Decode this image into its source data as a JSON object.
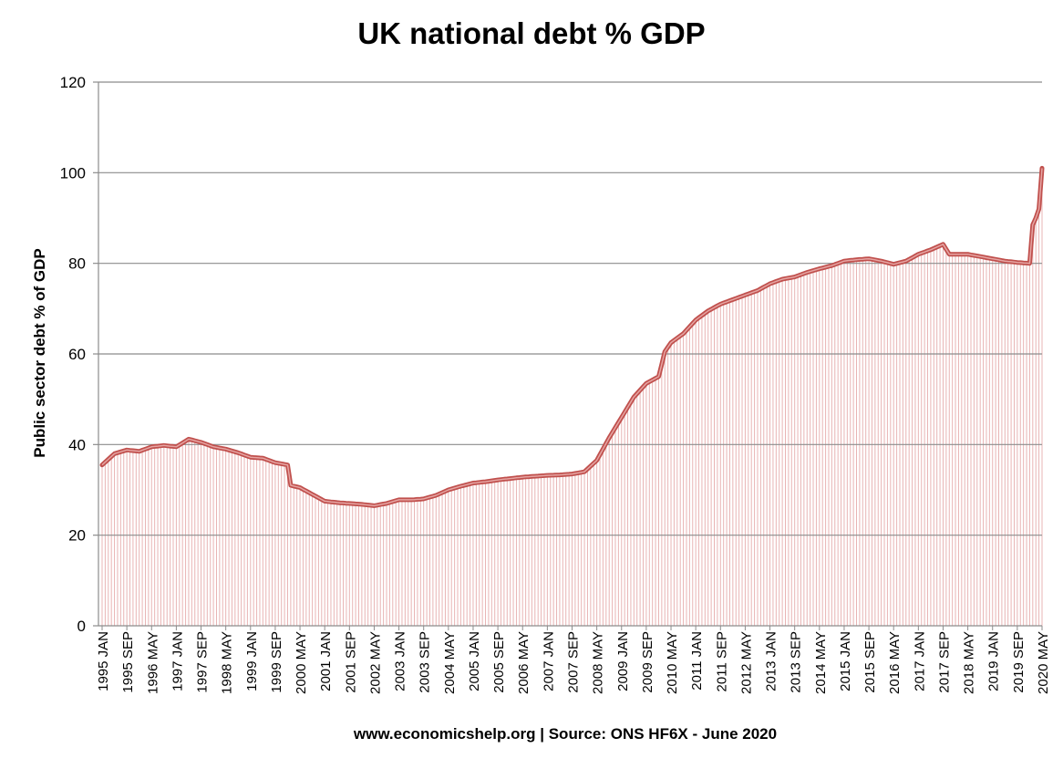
{
  "chart_data": {
    "type": "line",
    "title": "UK national debt % GDP",
    "ylabel": "Public sector debt % of GDP",
    "source": "www.economicshelp.org | Source: ONS HF6X - June 2020",
    "ylim": [
      0,
      120
    ],
    "yticks": [
      0,
      20,
      40,
      60,
      80,
      100,
      120
    ],
    "grid": true,
    "x_tick_labels": [
      "1995 JAN",
      "1995 SEP",
      "1996 MAY",
      "1997 JAN",
      "1997 SEP",
      "1998 MAY",
      "1999 JAN",
      "1999 SEP",
      "2000 MAY",
      "2001 JAN",
      "2001 SEP",
      "2002 MAY",
      "2003 JAN",
      "2003 SEP",
      "2004 MAY",
      "2005 JAN",
      "2005 SEP",
      "2006 MAY",
      "2007 JAN",
      "2007 SEP",
      "2008 MAY",
      "2009 JAN",
      "2009 SEP",
      "2010 MAY",
      "2011 JAN",
      "2011 SEP",
      "2012 MAY",
      "2013 JAN",
      "2013 SEP",
      "2014 MAY",
      "2015 JAN",
      "2015 SEP",
      "2016 MAY",
      "2017 JAN",
      "2017 SEP",
      "2018 MAY",
      "2019 JAN",
      "2019 SEP",
      "2020 MAY"
    ],
    "series": [
      {
        "color": "#c0504d",
        "points": [
          [
            "1995-01",
            35.5
          ],
          [
            "1995-05",
            38.0
          ],
          [
            "1995-09",
            38.8
          ],
          [
            "1996-01",
            38.5
          ],
          [
            "1996-05",
            39.5
          ],
          [
            "1996-09",
            39.8
          ],
          [
            "1997-01",
            39.5
          ],
          [
            "1997-05",
            41.2
          ],
          [
            "1997-09",
            40.5
          ],
          [
            "1998-01",
            39.5
          ],
          [
            "1998-05",
            39.0
          ],
          [
            "1998-09",
            38.2
          ],
          [
            "1999-01",
            37.2
          ],
          [
            "1999-05",
            37.0
          ],
          [
            "1999-09",
            36.0
          ],
          [
            "2000-01",
            35.5
          ],
          [
            "2000-02",
            31.0
          ],
          [
            "2000-05",
            30.5
          ],
          [
            "2000-09",
            29.0
          ],
          [
            "2001-01",
            27.5
          ],
          [
            "2001-05",
            27.2
          ],
          [
            "2001-09",
            27.0
          ],
          [
            "2002-01",
            26.8
          ],
          [
            "2002-05",
            26.5
          ],
          [
            "2002-09",
            27.0
          ],
          [
            "2003-01",
            27.8
          ],
          [
            "2003-05",
            27.8
          ],
          [
            "2003-09",
            28.0
          ],
          [
            "2004-01",
            28.8
          ],
          [
            "2004-05",
            30.0
          ],
          [
            "2004-09",
            30.8
          ],
          [
            "2005-01",
            31.5
          ],
          [
            "2005-05",
            31.8
          ],
          [
            "2005-09",
            32.2
          ],
          [
            "2006-01",
            32.5
          ],
          [
            "2006-05",
            32.8
          ],
          [
            "2006-09",
            33.0
          ],
          [
            "2007-01",
            33.2
          ],
          [
            "2007-05",
            33.3
          ],
          [
            "2007-09",
            33.5
          ],
          [
            "2008-01",
            34.0
          ],
          [
            "2008-05",
            36.5
          ],
          [
            "2008-09",
            41.5
          ],
          [
            "2009-01",
            46.0
          ],
          [
            "2009-05",
            50.5
          ],
          [
            "2009-09",
            53.5
          ],
          [
            "2010-01",
            55.0
          ],
          [
            "2010-03",
            60.5
          ],
          [
            "2010-05",
            62.5
          ],
          [
            "2010-09",
            64.5
          ],
          [
            "2011-01",
            67.5
          ],
          [
            "2011-05",
            69.5
          ],
          [
            "2011-09",
            71.0
          ],
          [
            "2012-01",
            72.0
          ],
          [
            "2012-05",
            73.0
          ],
          [
            "2012-09",
            74.0
          ],
          [
            "2013-01",
            75.5
          ],
          [
            "2013-05",
            76.5
          ],
          [
            "2013-09",
            77.0
          ],
          [
            "2014-01",
            78.0
          ],
          [
            "2014-05",
            78.8
          ],
          [
            "2014-09",
            79.5
          ],
          [
            "2015-01",
            80.5
          ],
          [
            "2015-05",
            80.8
          ],
          [
            "2015-09",
            81.0
          ],
          [
            "2016-01",
            80.5
          ],
          [
            "2016-05",
            79.8
          ],
          [
            "2016-09",
            80.5
          ],
          [
            "2017-01",
            82.0
          ],
          [
            "2017-05",
            83.0
          ],
          [
            "2017-09",
            84.2
          ],
          [
            "2017-11",
            82.0
          ],
          [
            "2018-01",
            82.0
          ],
          [
            "2018-05",
            82.0
          ],
          [
            "2018-09",
            81.5
          ],
          [
            "2019-01",
            81.0
          ],
          [
            "2019-05",
            80.5
          ],
          [
            "2019-09",
            80.2
          ],
          [
            "2020-01",
            80.0
          ],
          [
            "2020-02",
            88.5
          ],
          [
            "2020-03",
            90.0
          ],
          [
            "2020-04",
            92.0
          ],
          [
            "2020-05",
            101.0
          ]
        ]
      }
    ]
  }
}
